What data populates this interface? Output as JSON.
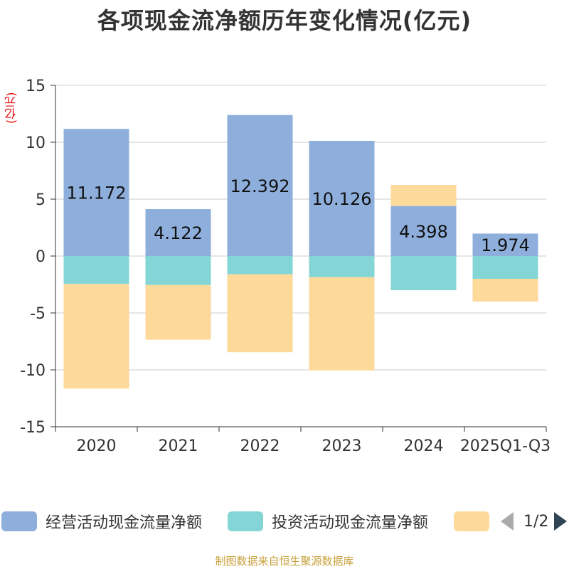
{
  "title": "各项现金流净额历年变化情况(亿元)",
  "unit_label": "(亿元)",
  "footer": "制图数据来自恒生聚源数据库",
  "pager": {
    "text": "1/2"
  },
  "colors": {
    "operating": "#8eaedc",
    "investing": "#84d6d6",
    "financing": "#fdd99a",
    "axis": "#333333",
    "grid": "#cccccc"
  },
  "chart_data": {
    "type": "bar",
    "stacked": true,
    "categories": [
      "2020",
      "2021",
      "2022",
      "2023",
      "2024",
      "2025Q1-Q3"
    ],
    "ylim": [
      -15,
      15
    ],
    "yticks": [
      15,
      10,
      5,
      0,
      -5,
      -10,
      -15
    ],
    "series": [
      {
        "name": "经营活动现金流量净额",
        "values": [
          11.172,
          4.122,
          12.392,
          10.126,
          4.398,
          1.974
        ],
        "labels": [
          "11.172",
          "4.122",
          "12.392",
          "10.126",
          "4.398",
          "1.974"
        ]
      },
      {
        "name": "投资活动现金流量净额",
        "values": [
          -2.45,
          -2.55,
          -1.6,
          -1.85,
          -3.0,
          -2.0
        ]
      },
      {
        "name": "",
        "values": [
          -9.2,
          -4.8,
          -6.85,
          -8.2,
          1.85,
          -2.0
        ]
      }
    ]
  }
}
